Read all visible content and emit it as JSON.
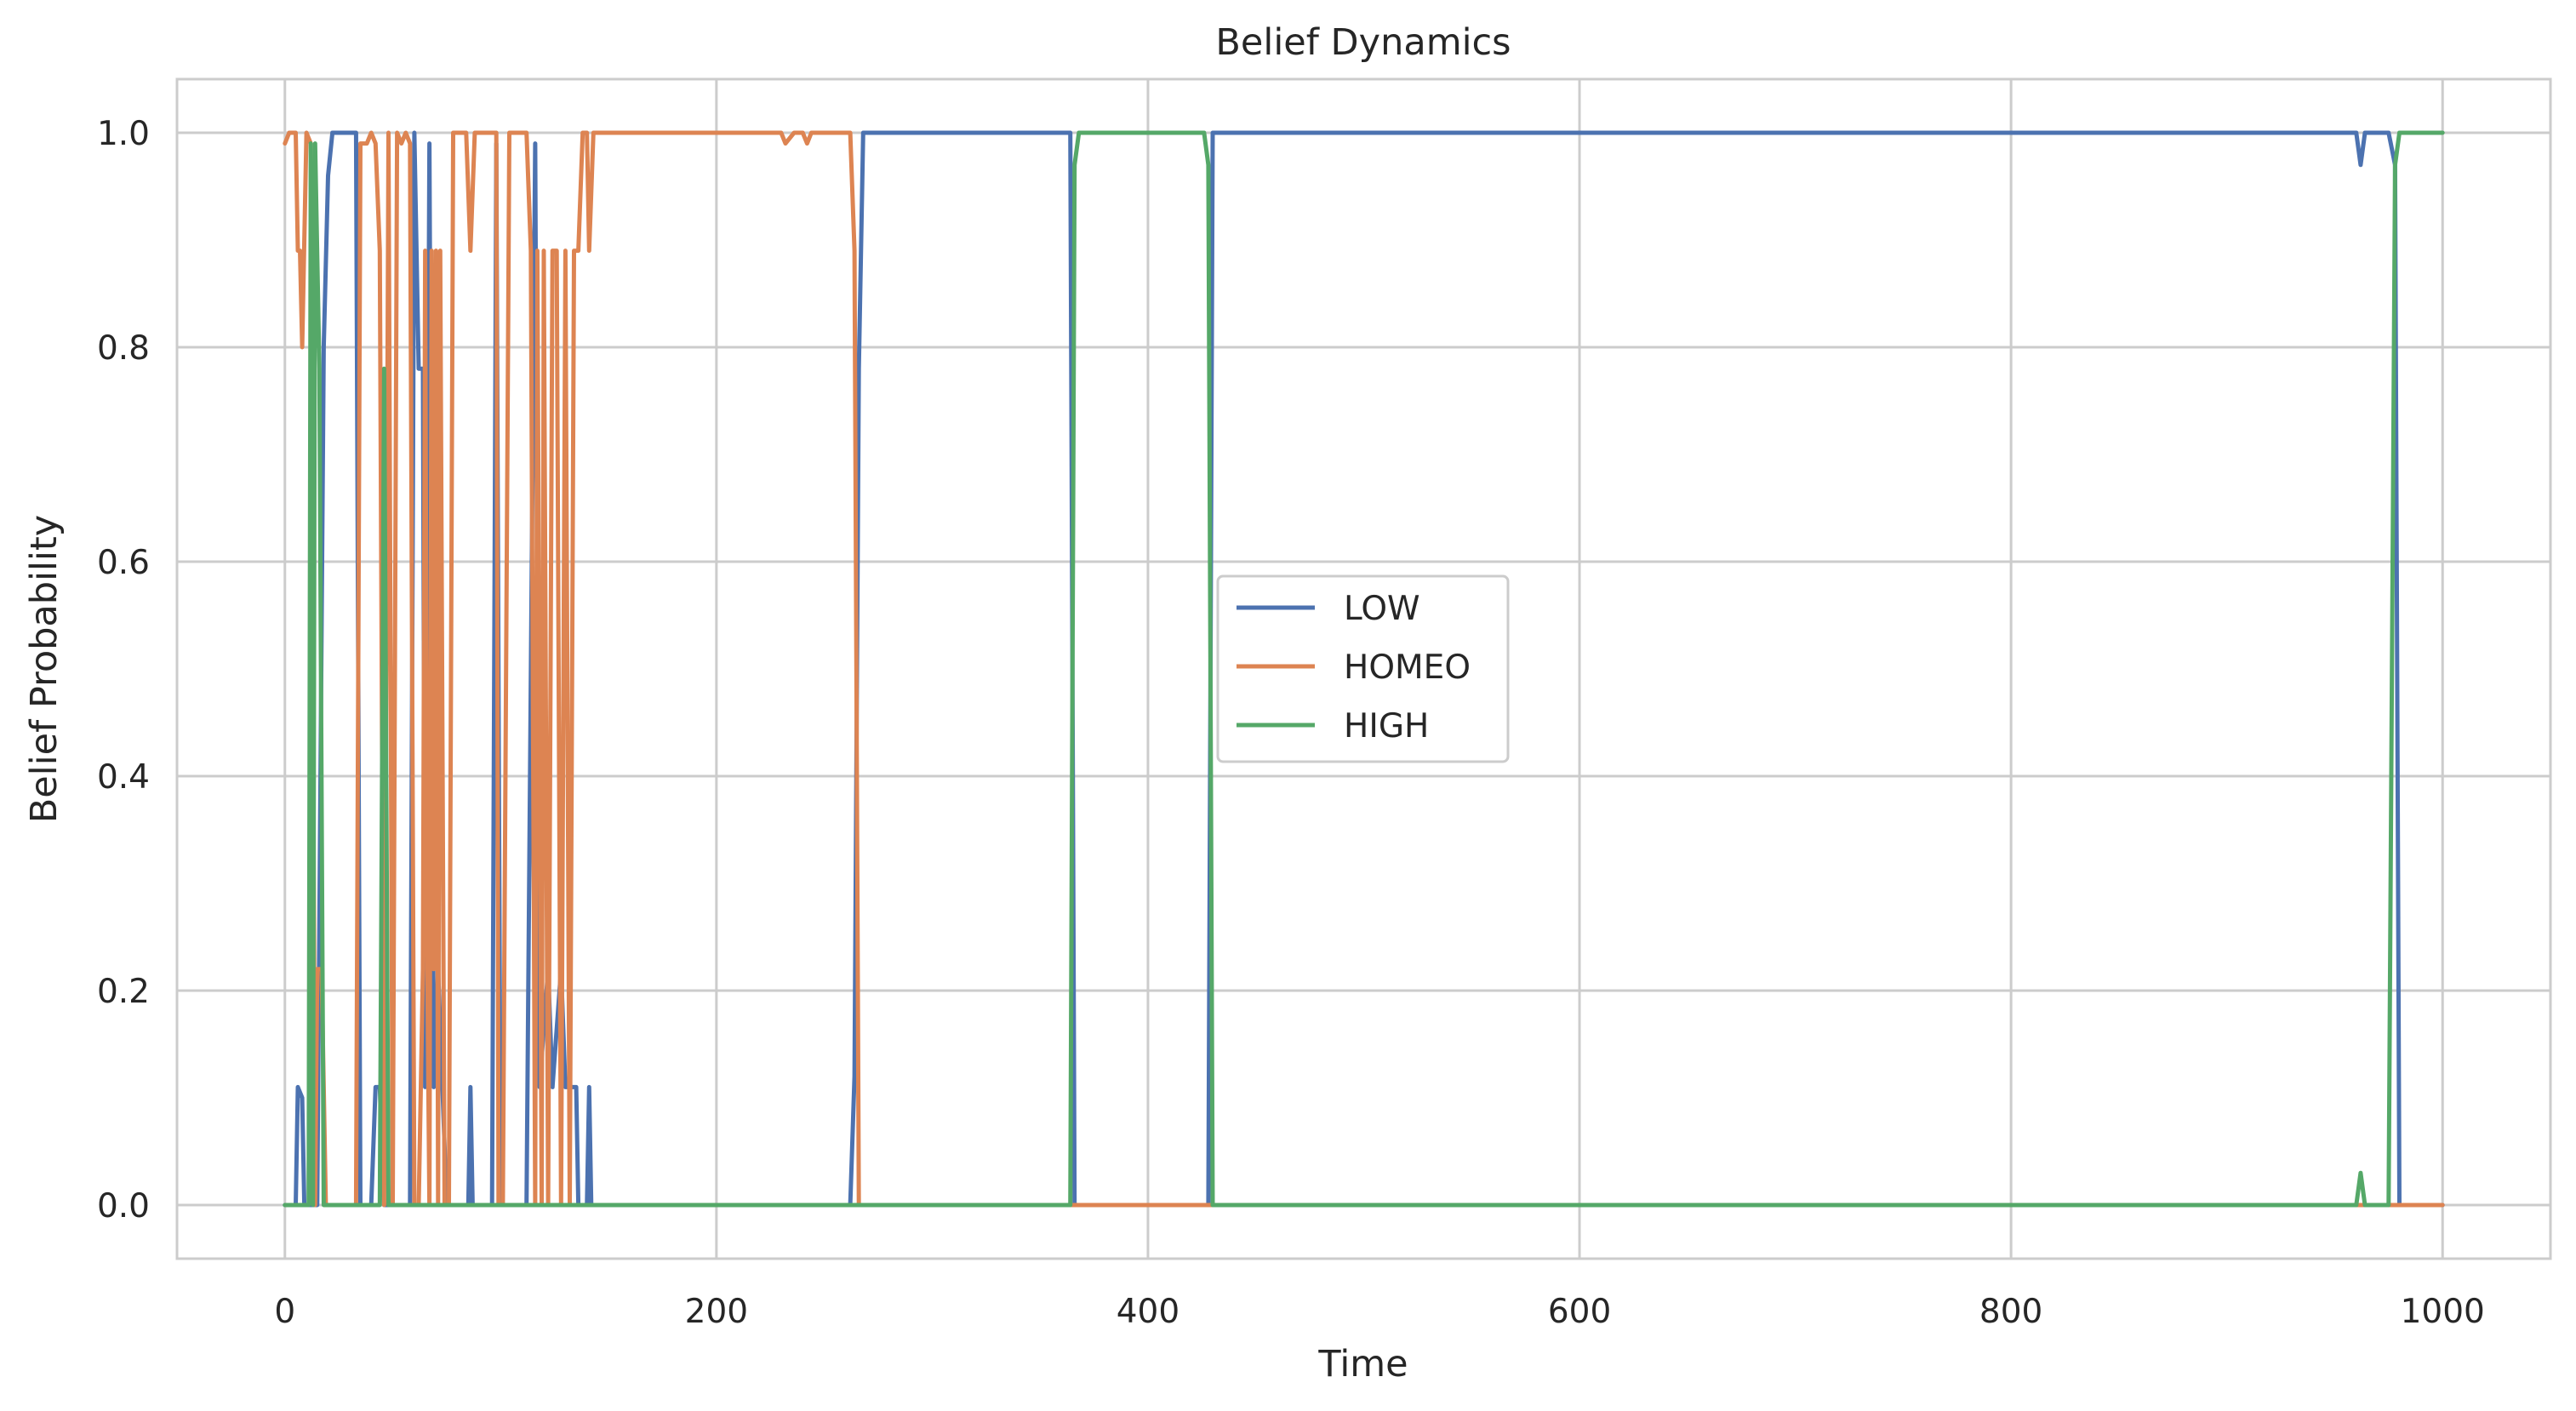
{
  "chart_data": {
    "type": "line",
    "title": "Belief Dynamics",
    "xlabel": "Time",
    "ylabel": "Belief Probability",
    "xlim": [
      -50,
      1050
    ],
    "ylim": [
      -0.05,
      1.05
    ],
    "xticks": [
      0,
      200,
      400,
      600,
      800,
      1000
    ],
    "xtick_labels": [
      "0",
      "200",
      "400",
      "600",
      "800",
      "1000"
    ],
    "yticks": [
      0.0,
      0.2,
      0.4,
      0.6,
      0.8,
      1.0
    ],
    "ytick_labels": [
      "0.0",
      "0.2",
      "0.4",
      "0.6",
      "0.8",
      "1.0"
    ],
    "grid": true,
    "legend_position": "center",
    "series": [
      {
        "name": "LOW",
        "color": "#4c72b0",
        "points": [
          [
            0,
            0
          ],
          [
            5,
            0
          ],
          [
            6,
            0.11
          ],
          [
            8,
            0.1
          ],
          [
            9,
            0
          ],
          [
            15,
            0
          ],
          [
            18,
            0.8
          ],
          [
            20,
            0.96
          ],
          [
            22,
            1
          ],
          [
            33,
            1
          ],
          [
            35,
            0
          ],
          [
            40,
            0
          ],
          [
            42,
            0.11
          ],
          [
            44,
            0.11
          ],
          [
            46,
            0
          ],
          [
            52,
            0
          ],
          [
            55,
            0
          ],
          [
            58,
            0
          ],
          [
            60,
            1
          ],
          [
            62,
            0.78
          ],
          [
            64,
            0.78
          ],
          [
            65,
            0.11
          ],
          [
            67,
            0.99
          ],
          [
            69,
            0.11
          ],
          [
            71,
            0.22
          ],
          [
            73,
            0.11
          ],
          [
            75,
            0
          ],
          [
            85,
            0
          ],
          [
            86,
            0.11
          ],
          [
            87,
            0
          ],
          [
            96,
            0
          ],
          [
            98,
            0.99
          ],
          [
            100,
            0
          ],
          [
            112,
            0
          ],
          [
            116,
            0.99
          ],
          [
            118,
            0.11
          ],
          [
            122,
            0.22
          ],
          [
            124,
            0.11
          ],
          [
            128,
            0.22
          ],
          [
            130,
            0.11
          ],
          [
            135,
            0.11
          ],
          [
            136,
            0
          ],
          [
            140,
            0
          ],
          [
            141,
            0.11
          ],
          [
            142,
            0
          ],
          [
            262,
            0
          ],
          [
            264,
            0.12
          ],
          [
            266,
            0.78
          ],
          [
            268,
            1
          ],
          [
            364,
            1
          ],
          [
            366,
            0
          ],
          [
            426,
            0
          ],
          [
            428,
            0
          ],
          [
            430,
            1
          ],
          [
            960,
            1
          ],
          [
            962,
            0.97
          ],
          [
            964,
            1
          ],
          [
            975,
            1
          ],
          [
            978,
            0.97
          ],
          [
            980,
            0
          ],
          [
            1000,
            0
          ]
        ]
      },
      {
        "name": "HOMEO",
        "color": "#dd8452",
        "points": [
          [
            0,
            0.99
          ],
          [
            2,
            1
          ],
          [
            5,
            1
          ],
          [
            6,
            0.89
          ],
          [
            7,
            0.89
          ],
          [
            8,
            0.8
          ],
          [
            10,
            1
          ],
          [
            12,
            0.99
          ],
          [
            14,
            0
          ],
          [
            15,
            0.22
          ],
          [
            17,
            0.22
          ],
          [
            19,
            0
          ],
          [
            33,
            0
          ],
          [
            35,
            0.99
          ],
          [
            38,
            0.99
          ],
          [
            40,
            1
          ],
          [
            42,
            0.99
          ],
          [
            44,
            0.89
          ],
          [
            46,
            0
          ],
          [
            48,
            1
          ],
          [
            50,
            0
          ],
          [
            52,
            1
          ],
          [
            54,
            0.99
          ],
          [
            56,
            1
          ],
          [
            58,
            0.99
          ],
          [
            60,
            0
          ],
          [
            62,
            0
          ],
          [
            64,
            0.22
          ],
          [
            65,
            0.89
          ],
          [
            66,
            0.22
          ],
          [
            67,
            0
          ],
          [
            68,
            0.89
          ],
          [
            69,
            0.22
          ],
          [
            70,
            0.89
          ],
          [
            71,
            0
          ],
          [
            72,
            0.89
          ],
          [
            74,
            0
          ],
          [
            76,
            0
          ],
          [
            78,
            1
          ],
          [
            80,
            1
          ],
          [
            84,
            1
          ],
          [
            86,
            0.89
          ],
          [
            88,
            1
          ],
          [
            98,
            1
          ],
          [
            99,
            0
          ],
          [
            101,
            0
          ],
          [
            104,
            1
          ],
          [
            112,
            1
          ],
          [
            114,
            0.89
          ],
          [
            116,
            0
          ],
          [
            117,
            0.89
          ],
          [
            119,
            0
          ],
          [
            120,
            0.89
          ],
          [
            122,
            0
          ],
          [
            124,
            0.89
          ],
          [
            126,
            0.89
          ],
          [
            128,
            0
          ],
          [
            130,
            0.89
          ],
          [
            132,
            0
          ],
          [
            134,
            0.89
          ],
          [
            136,
            0.89
          ],
          [
            138,
            1
          ],
          [
            140,
            1
          ],
          [
            141,
            0.89
          ],
          [
            143,
            1
          ],
          [
            230,
            1
          ],
          [
            232,
            0.99
          ],
          [
            236,
            1
          ],
          [
            240,
            1
          ],
          [
            242,
            0.99
          ],
          [
            244,
            1
          ],
          [
            262,
            1
          ],
          [
            264,
            0.89
          ],
          [
            266,
            0
          ],
          [
            268,
            0
          ],
          [
            364,
            0
          ],
          [
            366,
            0
          ],
          [
            368,
            0
          ],
          [
            426,
            0
          ],
          [
            428,
            0
          ],
          [
            430,
            0
          ],
          [
            975,
            0
          ],
          [
            978,
            0
          ],
          [
            980,
            0
          ],
          [
            1000,
            0
          ]
        ]
      },
      {
        "name": "HIGH",
        "color": "#55a868",
        "points": [
          [
            0,
            0
          ],
          [
            11,
            0
          ],
          [
            12,
            0.99
          ],
          [
            13,
            0
          ],
          [
            14,
            0.99
          ],
          [
            16,
            0.78
          ],
          [
            18,
            0
          ],
          [
            44,
            0
          ],
          [
            46,
            0.78
          ],
          [
            48,
            0
          ],
          [
            262,
            0
          ],
          [
            264,
            0
          ],
          [
            364,
            0
          ],
          [
            366,
            0.97
          ],
          [
            368,
            1
          ],
          [
            426,
            1
          ],
          [
            428,
            0.97
          ],
          [
            430,
            0
          ],
          [
            960,
            0
          ],
          [
            962,
            0.03
          ],
          [
            964,
            0
          ],
          [
            975,
            0
          ],
          [
            978,
            0.97
          ],
          [
            980,
            1
          ],
          [
            1000,
            1
          ]
        ]
      }
    ]
  }
}
